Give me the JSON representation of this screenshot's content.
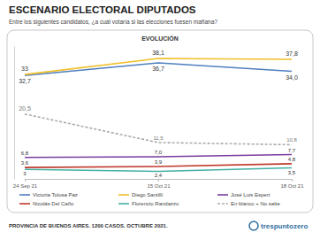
{
  "chart_data": {
    "type": "line",
    "title": "ESCENARIO ELECTORAL DIPUTADOS",
    "subtitle": "Entre los siguientes candidatos, ¿a cuál votaría si las elecciones fuesen mañana?",
    "panel_title": "EVOLUCIÓN",
    "footnote": "PROVINCIA DE BUENOS AIRES. 1200 CASOS. OCTUBRE 2021.",
    "source": "trespuntozero",
    "categories": [
      "24 Sep 21",
      "15 Oct 21",
      "18 Oct 21"
    ],
    "ylim": [
      0,
      42
    ],
    "tick_labels": "x",
    "data_labels": true,
    "legend": "bottom",
    "series": [
      {
        "name": "Victoria Tolosa Paz",
        "color": "#4f7fbf",
        "values": [
          32.7,
          36.7,
          34.0
        ],
        "value_labels": [
          "32,7",
          "36,7",
          "34,0"
        ]
      },
      {
        "name": "Diego Santilli",
        "color": "#f2bf2a",
        "values": [
          33,
          38.1,
          37.8
        ],
        "value_labels": [
          "33",
          "38,1",
          "37,8"
        ]
      },
      {
        "name": "José Luis Espert",
        "color": "#7a3c9e",
        "values": [
          6.8,
          7.0,
          7.7
        ],
        "value_labels": [
          "6,8",
          "7,0",
          "7,7"
        ]
      },
      {
        "name": "Nicolás Del Caño",
        "color": "#c0392b",
        "values": [
          3.6,
          3.9,
          4.8
        ],
        "value_labels": [
          "3,6",
          "3,9",
          "4,8"
        ]
      },
      {
        "name": "Florencio Randazzo",
        "color": "#45b0a5",
        "values": [
          3,
          2.4,
          3.5
        ],
        "value_labels": [
          "3",
          "2,4",
          "3,5"
        ]
      },
      {
        "name": "En blanco + No sabe",
        "color": "#aaaaaa",
        "line_style": "dashed",
        "values": [
          20.5,
          11.5,
          10.8
        ],
        "value_labels": [
          "20,5",
          "11,5",
          "10,8"
        ]
      }
    ]
  }
}
